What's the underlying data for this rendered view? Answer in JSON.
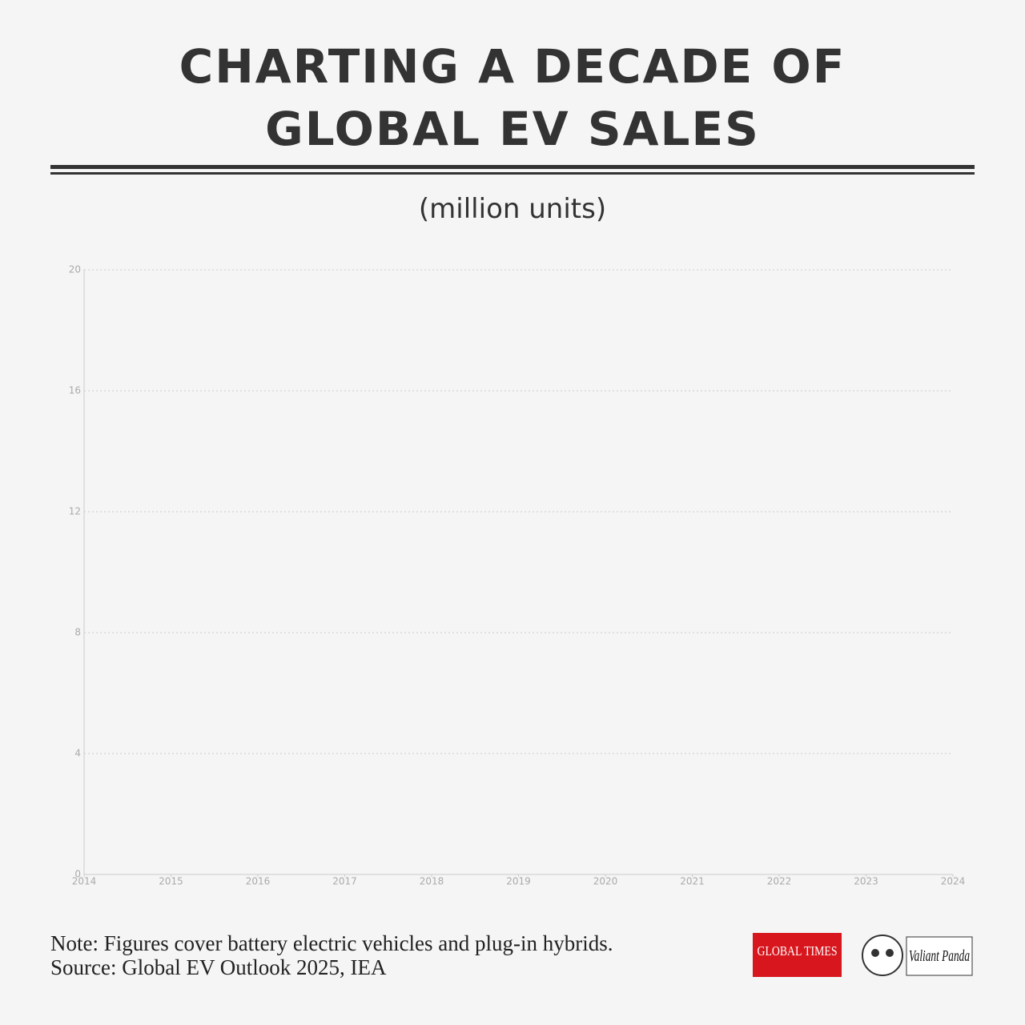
{
  "chart_data": {
    "type": "line",
    "title": "CHARTING A DECADE OF GLOBAL EV SALES",
    "subtitle": "(million units)",
    "xlim": [
      2014,
      2024
    ],
    "xticks": [
      2014,
      2015,
      2016,
      2017,
      2018,
      2019,
      2020,
      2021,
      2022,
      2023,
      2024
    ],
    "ylim": [
      0,
      20
    ],
    "yticks": [
      0,
      4,
      8,
      12,
      16,
      20
    ],
    "grid": true,
    "series": [],
    "note": "Note: Figures cover battery electric vehicles and plug-in hybrids.",
    "source": "Source: Global EV Outlook 2025, IEA",
    "logos": [
      "GLOBAL TIMES",
      "Valiant Panda"
    ]
  }
}
